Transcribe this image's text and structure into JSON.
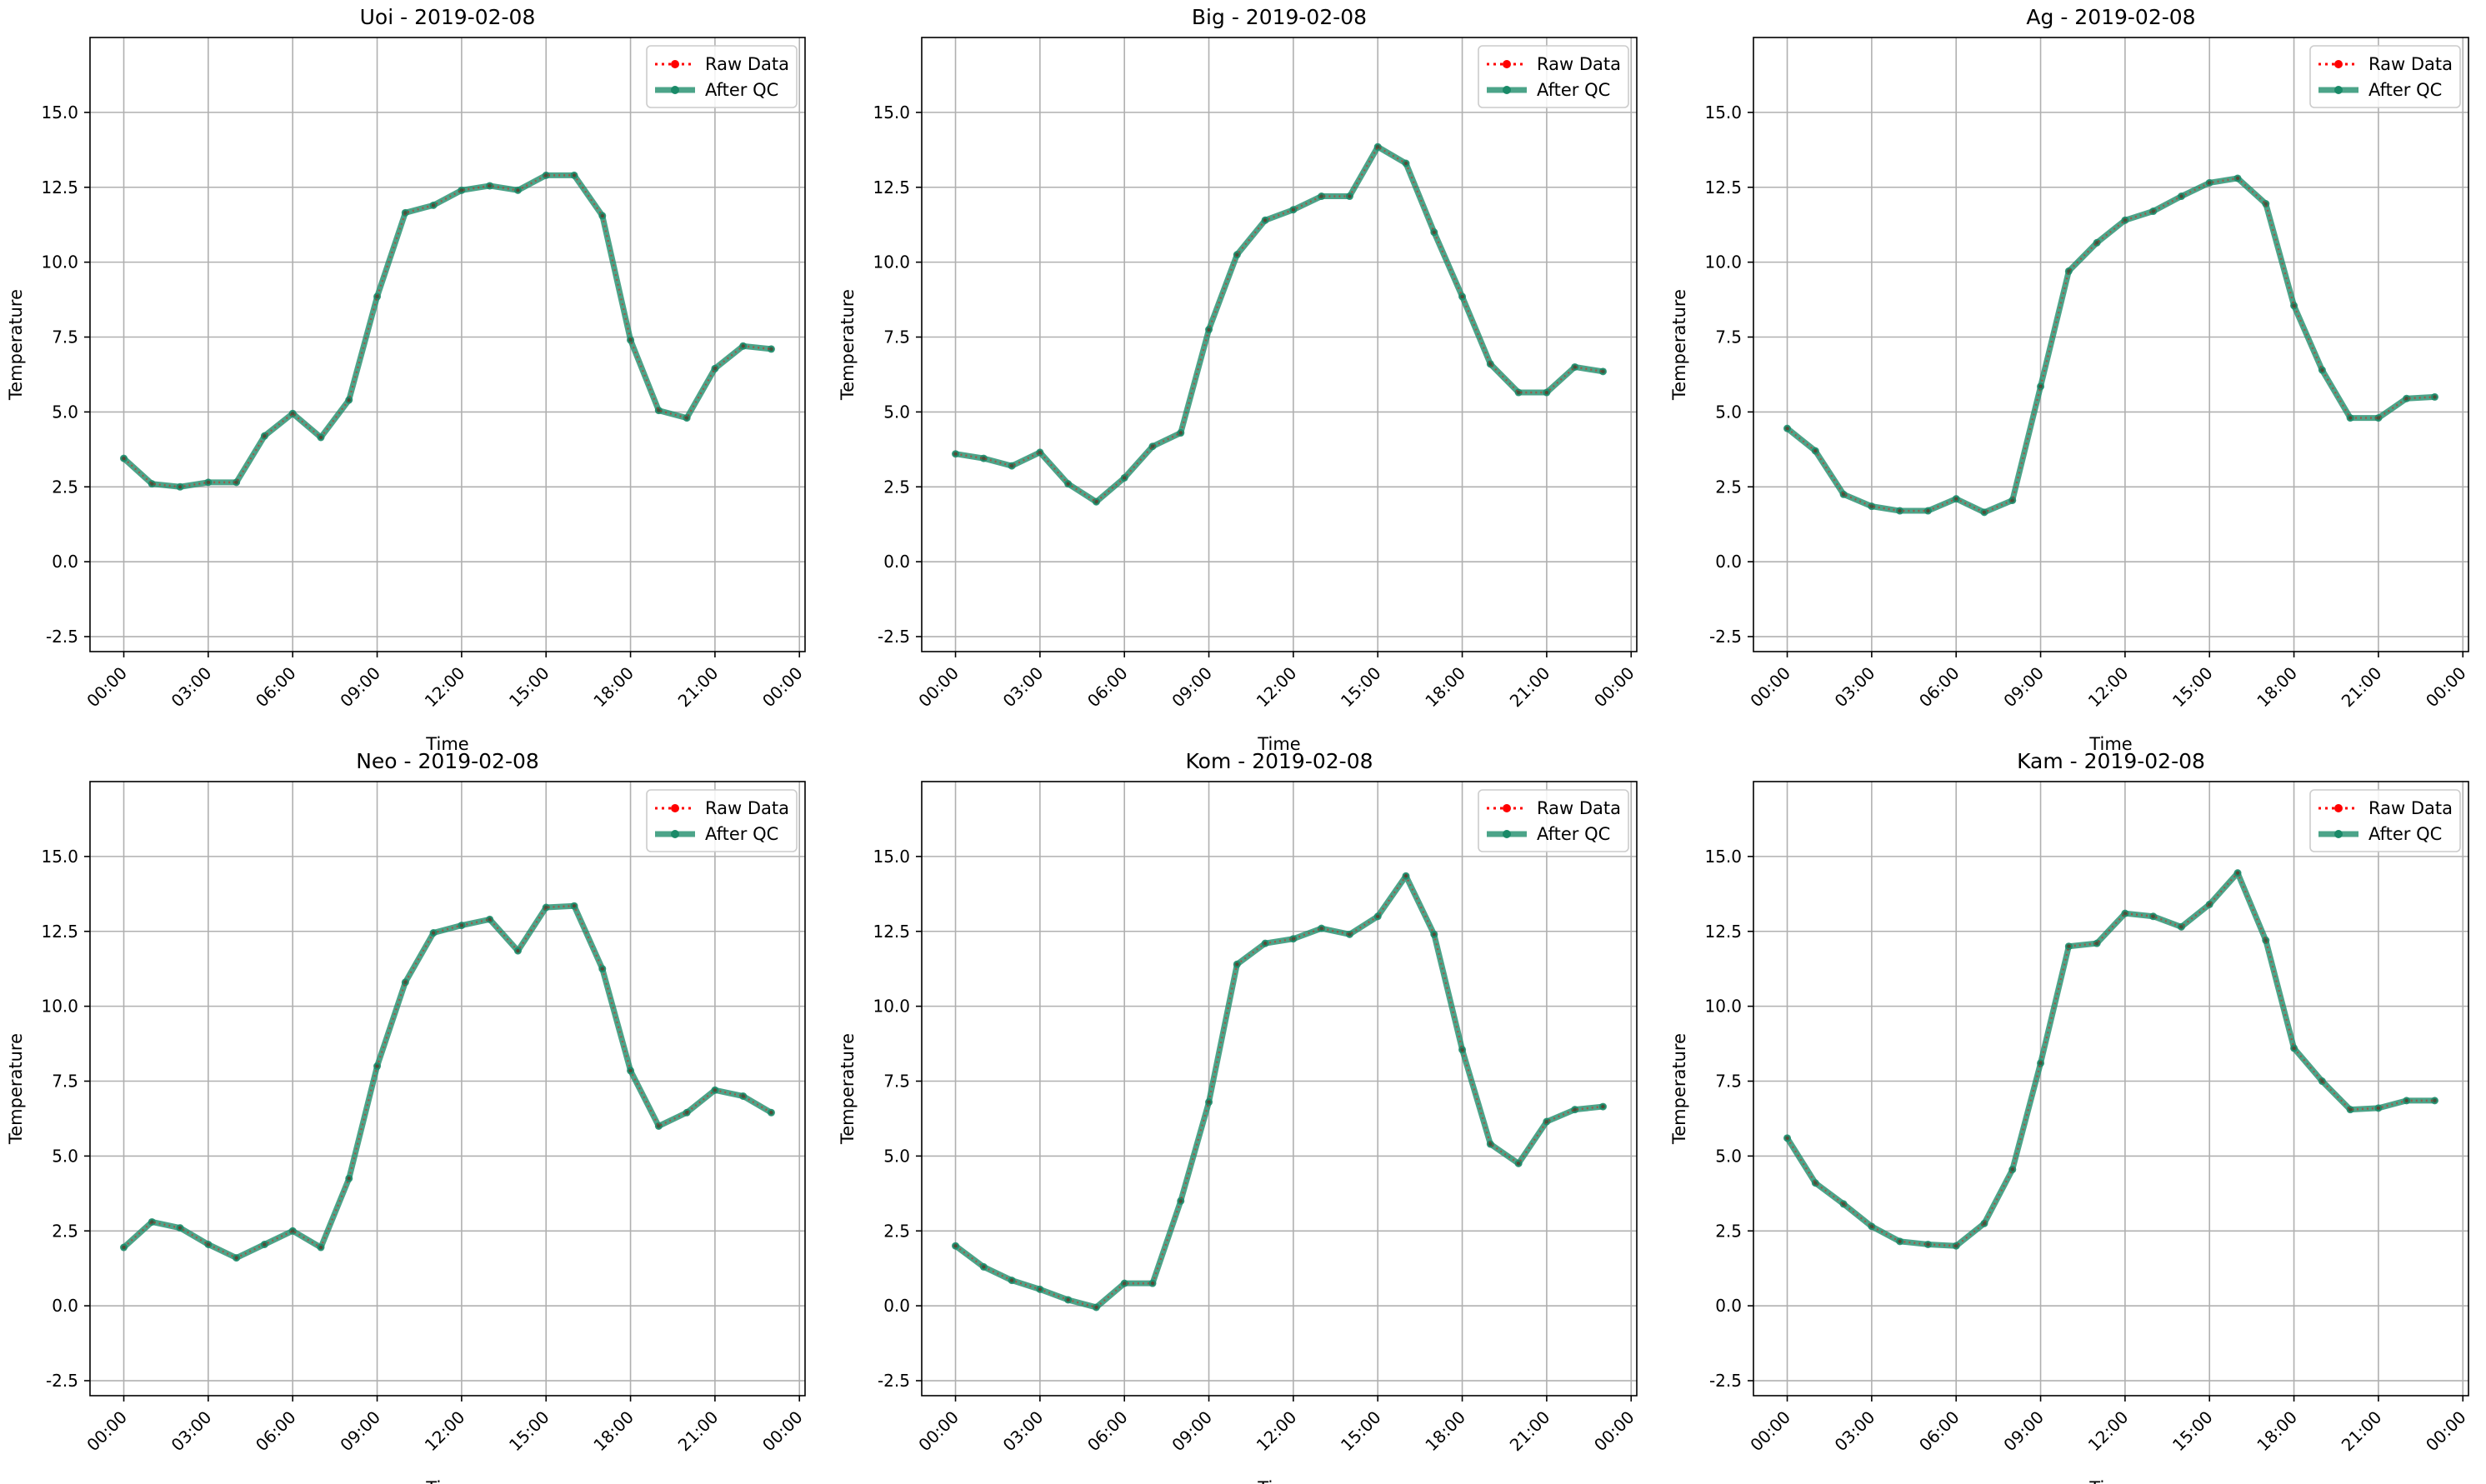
{
  "chart_data": [
    {
      "type": "line",
      "title": "Uoi - 2019-02-08",
      "xlabel": "Time",
      "ylabel": "Temperature",
      "x_ticks": [
        "00:00",
        "03:00",
        "06:00",
        "09:00",
        "12:00",
        "15:00",
        "18:00",
        "21:00",
        "00:00"
      ],
      "y_ticks": [
        "-2.5",
        "0.0",
        "2.5",
        "5.0",
        "7.5",
        "10.0",
        "12.5",
        "15.0"
      ],
      "xlim": [
        -1.2,
        24.2
      ],
      "ylim": [
        -3.0,
        17.5
      ],
      "grid": true,
      "legend_position": "top-right",
      "x": [
        0,
        1,
        2,
        3,
        4,
        5,
        6,
        7,
        8,
        9,
        10,
        11,
        12,
        13,
        14,
        15,
        16,
        17,
        18,
        19,
        20,
        21,
        22,
        23
      ],
      "series": [
        {
          "name": "Raw Data",
          "color": "#ff0000",
          "style": "dotted-markers",
          "values": [
            3.45,
            2.6,
            2.5,
            2.65,
            2.65,
            4.2,
            4.95,
            4.15,
            5.4,
            8.85,
            11.65,
            11.9,
            12.4,
            12.55,
            12.4,
            12.9,
            12.9,
            11.55,
            7.4,
            5.05,
            4.8,
            6.45,
            7.2,
            7.1
          ]
        },
        {
          "name": "After QC",
          "color": "#1a8a68",
          "style": "thick-line-markers",
          "values": [
            3.45,
            2.6,
            2.5,
            2.65,
            2.65,
            4.2,
            4.95,
            4.15,
            5.4,
            8.85,
            11.65,
            11.9,
            12.4,
            12.55,
            12.4,
            12.9,
            12.9,
            11.55,
            7.4,
            5.05,
            4.8,
            6.45,
            7.2,
            7.1
          ]
        }
      ]
    },
    {
      "type": "line",
      "title": "Big - 2019-02-08",
      "xlabel": "Time",
      "ylabel": "Temperature",
      "x_ticks": [
        "00:00",
        "03:00",
        "06:00",
        "09:00",
        "12:00",
        "15:00",
        "18:00",
        "21:00",
        "00:00"
      ],
      "y_ticks": [
        "-2.5",
        "0.0",
        "2.5",
        "5.0",
        "7.5",
        "10.0",
        "12.5",
        "15.0"
      ],
      "xlim": [
        -1.2,
        24.2
      ],
      "ylim": [
        -3.0,
        17.5
      ],
      "grid": true,
      "legend_position": "top-right",
      "x": [
        0,
        1,
        2,
        3,
        4,
        5,
        6,
        7,
        8,
        9,
        10,
        11,
        12,
        13,
        14,
        15,
        16,
        17,
        18,
        19,
        20,
        21,
        22,
        23
      ],
      "series": [
        {
          "name": "Raw Data",
          "color": "#ff0000",
          "style": "dotted-markers",
          "values": [
            3.6,
            3.45,
            3.2,
            3.65,
            2.6,
            2.0,
            2.8,
            3.85,
            4.3,
            7.75,
            10.25,
            11.4,
            11.75,
            12.2,
            12.2,
            13.85,
            13.3,
            11.0,
            8.85,
            6.6,
            5.65,
            5.65,
            6.5,
            6.35
          ]
        },
        {
          "name": "After QC",
          "color": "#1a8a68",
          "style": "thick-line-markers",
          "values": [
            3.6,
            3.45,
            3.2,
            3.65,
            2.6,
            2.0,
            2.8,
            3.85,
            4.3,
            7.75,
            10.25,
            11.4,
            11.75,
            12.2,
            12.2,
            13.85,
            13.3,
            11.0,
            8.85,
            6.6,
            5.65,
            5.65,
            6.5,
            6.35
          ]
        }
      ]
    },
    {
      "type": "line",
      "title": "Ag - 2019-02-08",
      "xlabel": "Time",
      "ylabel": "Temperature",
      "x_ticks": [
        "00:00",
        "03:00",
        "06:00",
        "09:00",
        "12:00",
        "15:00",
        "18:00",
        "21:00",
        "00:00"
      ],
      "y_ticks": [
        "-2.5",
        "0.0",
        "2.5",
        "5.0",
        "7.5",
        "10.0",
        "12.5",
        "15.0"
      ],
      "xlim": [
        -1.2,
        24.2
      ],
      "ylim": [
        -3.0,
        17.5
      ],
      "grid": true,
      "legend_position": "top-right",
      "x": [
        0,
        1,
        2,
        3,
        4,
        5,
        6,
        7,
        8,
        9,
        10,
        11,
        12,
        13,
        14,
        15,
        16,
        17,
        18,
        19,
        20,
        21,
        22,
        23
      ],
      "series": [
        {
          "name": "Raw Data",
          "color": "#ff0000",
          "style": "dotted-markers",
          "values": [
            4.45,
            3.7,
            2.25,
            1.85,
            1.7,
            1.7,
            2.1,
            1.65,
            2.05,
            5.85,
            9.7,
            10.65,
            11.4,
            11.7,
            12.2,
            12.65,
            12.8,
            11.95,
            8.55,
            6.4,
            4.8,
            4.8,
            5.45,
            5.5
          ]
        },
        {
          "name": "After QC",
          "color": "#1a8a68",
          "style": "thick-line-markers",
          "values": [
            4.45,
            3.7,
            2.25,
            1.85,
            1.7,
            1.7,
            2.1,
            1.65,
            2.05,
            5.85,
            9.7,
            10.65,
            11.4,
            11.7,
            12.2,
            12.65,
            12.8,
            11.95,
            8.55,
            6.4,
            4.8,
            4.8,
            5.45,
            5.5
          ]
        }
      ]
    },
    {
      "type": "line",
      "title": "Neo - 2019-02-08",
      "xlabel": "Time",
      "ylabel": "Temperature",
      "x_ticks": [
        "00:00",
        "03:00",
        "06:00",
        "09:00",
        "12:00",
        "15:00",
        "18:00",
        "21:00",
        "00:00"
      ],
      "y_ticks": [
        "-2.5",
        "0.0",
        "2.5",
        "5.0",
        "7.5",
        "10.0",
        "12.5",
        "15.0"
      ],
      "xlim": [
        -1.2,
        24.2
      ],
      "ylim": [
        -3.0,
        17.5
      ],
      "grid": true,
      "legend_position": "top-right",
      "x": [
        0,
        1,
        2,
        3,
        4,
        5,
        6,
        7,
        8,
        9,
        10,
        11,
        12,
        13,
        14,
        15,
        16,
        17,
        18,
        19,
        20,
        21,
        22,
        23
      ],
      "series": [
        {
          "name": "Raw Data",
          "color": "#ff0000",
          "style": "dotted-markers",
          "values": [
            1.95,
            2.8,
            2.6,
            2.05,
            1.6,
            2.05,
            2.5,
            1.95,
            4.25,
            8.0,
            10.8,
            12.45,
            12.7,
            12.9,
            11.85,
            13.3,
            13.35,
            11.25,
            7.85,
            6.0,
            6.45,
            7.2,
            7.0,
            6.45
          ]
        },
        {
          "name": "After QC",
          "color": "#1a8a68",
          "style": "thick-line-markers",
          "values": [
            1.95,
            2.8,
            2.6,
            2.05,
            1.6,
            2.05,
            2.5,
            1.95,
            4.25,
            8.0,
            10.8,
            12.45,
            12.7,
            12.9,
            11.85,
            13.3,
            13.35,
            11.25,
            7.85,
            6.0,
            6.45,
            7.2,
            7.0,
            6.45
          ]
        }
      ]
    },
    {
      "type": "line",
      "title": "Kom - 2019-02-08",
      "xlabel": "Time",
      "ylabel": "Temperature",
      "x_ticks": [
        "00:00",
        "03:00",
        "06:00",
        "09:00",
        "12:00",
        "15:00",
        "18:00",
        "21:00",
        "00:00"
      ],
      "y_ticks": [
        "-2.5",
        "0.0",
        "2.5",
        "5.0",
        "7.5",
        "10.0",
        "12.5",
        "15.0"
      ],
      "xlim": [
        -1.2,
        24.2
      ],
      "ylim": [
        -3.0,
        17.5
      ],
      "grid": true,
      "legend_position": "top-right",
      "x": [
        0,
        1,
        2,
        3,
        4,
        5,
        6,
        7,
        8,
        9,
        10,
        11,
        12,
        13,
        14,
        15,
        16,
        17,
        18,
        19,
        20,
        21,
        22,
        23
      ],
      "series": [
        {
          "name": "Raw Data",
          "color": "#ff0000",
          "style": "dotted-markers",
          "values": [
            2.0,
            1.3,
            0.85,
            0.55,
            0.2,
            -0.05,
            0.75,
            0.75,
            3.5,
            6.8,
            11.4,
            12.1,
            12.25,
            12.6,
            12.4,
            13.0,
            14.35,
            12.4,
            8.55,
            5.4,
            4.75,
            6.15,
            6.55,
            6.65
          ]
        },
        {
          "name": "After QC",
          "color": "#1a8a68",
          "style": "thick-line-markers",
          "values": [
            2.0,
            1.3,
            0.85,
            0.55,
            0.2,
            -0.05,
            0.75,
            0.75,
            3.5,
            6.8,
            11.4,
            12.1,
            12.25,
            12.6,
            12.4,
            13.0,
            14.35,
            12.4,
            8.55,
            5.4,
            4.75,
            6.15,
            6.55,
            6.65
          ]
        }
      ]
    },
    {
      "type": "line",
      "title": "Kam - 2019-02-08",
      "xlabel": "Time",
      "ylabel": "Temperature",
      "x_ticks": [
        "00:00",
        "03:00",
        "06:00",
        "09:00",
        "12:00",
        "15:00",
        "18:00",
        "21:00",
        "00:00"
      ],
      "y_ticks": [
        "-2.5",
        "0.0",
        "2.5",
        "5.0",
        "7.5",
        "10.0",
        "12.5",
        "15.0"
      ],
      "xlim": [
        -1.2,
        24.2
      ],
      "ylim": [
        -3.0,
        17.5
      ],
      "grid": true,
      "legend_position": "top-right",
      "x": [
        0,
        1,
        2,
        3,
        4,
        5,
        6,
        7,
        8,
        9,
        10,
        11,
        12,
        13,
        14,
        15,
        16,
        17,
        18,
        19,
        20,
        21,
        22,
        23
      ],
      "series": [
        {
          "name": "Raw Data",
          "color": "#ff0000",
          "style": "dotted-markers",
          "values": [
            5.6,
            4.1,
            3.4,
            2.65,
            2.15,
            2.05,
            2.0,
            2.75,
            4.55,
            8.1,
            12.0,
            12.1,
            13.1,
            13.0,
            12.65,
            13.4,
            14.45,
            12.2,
            8.6,
            7.5,
            6.55,
            6.6,
            6.85,
            6.85
          ]
        },
        {
          "name": "After QC",
          "color": "#1a8a68",
          "style": "thick-line-markers",
          "values": [
            5.6,
            4.1,
            3.4,
            2.65,
            2.15,
            2.05,
            2.0,
            2.75,
            4.55,
            8.1,
            12.0,
            12.1,
            13.1,
            13.0,
            12.65,
            13.4,
            14.45,
            12.2,
            8.6,
            7.5,
            6.55,
            6.6,
            6.85,
            6.85
          ]
        }
      ]
    }
  ]
}
